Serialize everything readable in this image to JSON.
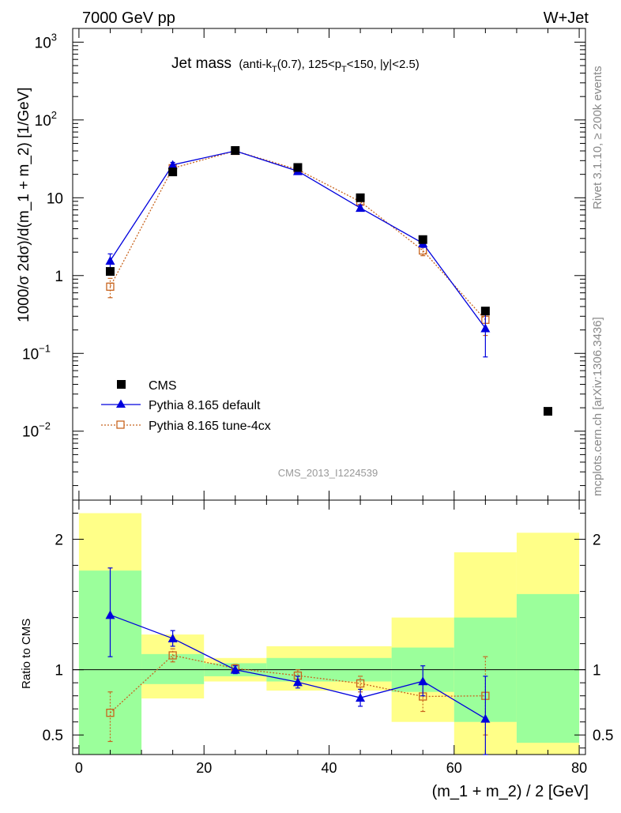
{
  "header": {
    "left": "7000 GeV pp",
    "right": "W+Jet"
  },
  "side": {
    "rivet": "Rivet 3.1.10, ≥ 200k events",
    "mcplots": "mcplots.cern.ch [arXiv:1306.3436]"
  },
  "analysis_id": "CMS_2013_I1224539",
  "chart_data": [
    {
      "type": "line",
      "panel": "main",
      "title": {
        "main": "Jet mass",
        "detail_prefix": "(anti-k",
        "detail_sub": "T",
        "detail_mid": "(0.7), 125<p",
        "detail_sub2": "T",
        "detail_suffix": "<150, |y|<2.5)"
      },
      "ylabel": "1000/σ 2dσ)/d(m_1 + m_2) [1/GeV]",
      "yscale": "log",
      "ylim": [
        0.0013,
        1500
      ],
      "xlim": [
        -1,
        81
      ],
      "ytick_labels": [
        {
          "v": 1000,
          "base": "10",
          "exp": "3"
        },
        {
          "v": 100,
          "base": "10",
          "exp": "2"
        },
        {
          "v": 10,
          "base": "10",
          "exp": ""
        },
        {
          "v": 1,
          "base": "1",
          "exp": ""
        },
        {
          "v": 0.1,
          "base": "10",
          "exp": "−1"
        },
        {
          "v": 0.01,
          "base": "10",
          "exp": "−2"
        }
      ],
      "legend": {
        "position": "lower-left",
        "entries": [
          "CMS",
          "Pythia 8.165 default",
          "Pythia 8.165 tune-4cx"
        ]
      },
      "series": [
        {
          "name": "CMS",
          "color": "#000000",
          "marker": "square",
          "x": [
            5,
            15,
            25,
            35,
            45,
            55,
            65,
            75
          ],
          "y": [
            1.13,
            21.5,
            40.5,
            24.5,
            10.0,
            2.9,
            0.35,
            0.018
          ]
        },
        {
          "name": "Pythia 8.165 default",
          "color": "#0000dd",
          "marker": "triangle",
          "line": "solid",
          "x": [
            5,
            15,
            25,
            35,
            45,
            55,
            65
          ],
          "y": [
            1.55,
            26.5,
            40.0,
            22.0,
            7.4,
            2.6,
            0.21
          ],
          "err_low": [
            1.25,
            24.5,
            38.5,
            20.5,
            6.8,
            2.3,
            0.09
          ],
          "err_high": [
            1.9,
            28.5,
            41.5,
            23.5,
            8.0,
            2.9,
            0.34
          ]
        },
        {
          "name": "Pythia 8.165 tune-4cx",
          "color": "#c8641e",
          "marker": "open-square",
          "line": "dotted",
          "x": [
            5,
            15,
            25,
            35,
            45,
            55,
            65
          ],
          "y": [
            0.72,
            24.0,
            40.0,
            23.0,
            8.9,
            2.1,
            0.27
          ],
          "err_low": [
            0.52,
            22.5,
            38.5,
            21.5,
            8.2,
            1.8,
            0.17
          ],
          "err_high": [
            0.92,
            25.5,
            41.5,
            24.5,
            9.6,
            2.4,
            0.37
          ]
        }
      ]
    },
    {
      "type": "line",
      "panel": "ratio",
      "ylabel": "Ratio to CMS",
      "xlabel": "(m_1 + m_2) / 2 [GeV]",
      "ylim": [
        0.35,
        2.3
      ],
      "xlim": [
        -1,
        81
      ],
      "xticks": [
        0,
        20,
        40,
        60,
        80
      ],
      "yticks": [
        0.5,
        1,
        2
      ],
      "bands": [
        {
          "x0": 0,
          "x1": 10,
          "yellow": [
            0.35,
            2.2
          ],
          "green": [
            0.35,
            1.76
          ]
        },
        {
          "x0": 10,
          "x1": 20,
          "yellow": [
            0.78,
            1.27
          ],
          "green": [
            0.89,
            1.12
          ]
        },
        {
          "x0": 20,
          "x1": 30,
          "yellow": [
            0.91,
            1.09
          ],
          "green": [
            0.95,
            1.05
          ]
        },
        {
          "x0": 30,
          "x1": 40,
          "yellow": [
            0.84,
            1.18
          ],
          "green": [
            0.91,
            1.09
          ]
        },
        {
          "x0": 40,
          "x1": 50,
          "yellow": [
            0.84,
            1.18
          ],
          "green": [
            0.91,
            1.09
          ]
        },
        {
          "x0": 50,
          "x1": 60,
          "yellow": [
            0.6,
            1.4
          ],
          "green": [
            0.83,
            1.17
          ]
        },
        {
          "x0": 60,
          "x1": 70,
          "yellow": [
            0.35,
            1.9
          ],
          "green": [
            0.6,
            1.4
          ]
        },
        {
          "x0": 70,
          "x1": 80,
          "yellow": [
            0.35,
            2.05
          ],
          "green": [
            0.44,
            1.58
          ]
        }
      ],
      "series": [
        {
          "name": "Pythia 8.165 default",
          "color": "#0000dd",
          "marker": "triangle",
          "line": "solid",
          "x": [
            5,
            15,
            25,
            35,
            45,
            55,
            65
          ],
          "y": [
            1.42,
            1.24,
            1.0,
            0.905,
            0.785,
            0.912,
            0.625
          ],
          "err_low": [
            1.1,
            1.18,
            0.97,
            0.86,
            0.72,
            0.8,
            0.35
          ],
          "err_high": [
            1.78,
            1.3,
            1.03,
            0.95,
            0.85,
            1.03,
            0.95
          ]
        },
        {
          "name": "Pythia 8.165 tune-4cx",
          "color": "#c8641e",
          "marker": "open-square",
          "line": "dotted",
          "x": [
            5,
            15,
            25,
            35,
            45,
            55,
            65
          ],
          "y": [
            0.67,
            1.11,
            1.01,
            0.955,
            0.895,
            0.795,
            0.8
          ],
          "err_low": [
            0.45,
            1.06,
            0.98,
            0.91,
            0.83,
            0.68,
            0.5
          ],
          "err_high": [
            0.83,
            1.16,
            1.04,
            1.0,
            0.95,
            0.92,
            1.1
          ]
        }
      ]
    }
  ]
}
